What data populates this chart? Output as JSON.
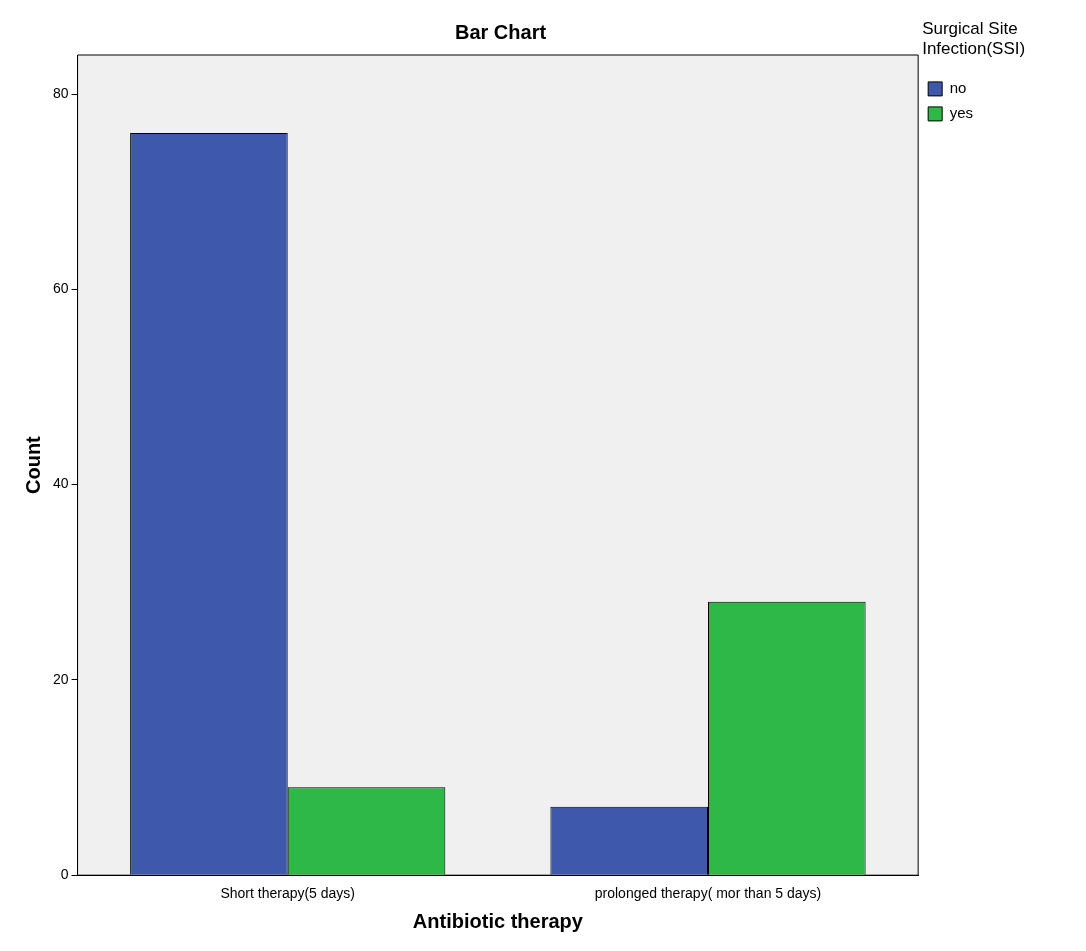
{
  "chart_data": {
    "type": "bar",
    "title": "Bar Chart",
    "xlabel": "Antibiotic therapy",
    "ylabel": "Count",
    "legend_title": "Surgical Site Infection(SSI)",
    "categories": [
      "Short therapy(5 days)",
      "prolonged therapy( mor than 5 days)"
    ],
    "series": [
      {
        "name": "no",
        "color": "#3e58ac",
        "values": [
          76,
          7
        ]
      },
      {
        "name": "yes",
        "color": "#2eb848",
        "values": [
          9,
          28
        ]
      }
    ],
    "ylim": [
      0,
      84
    ],
    "yticks": [
      0,
      20,
      40,
      60,
      80
    ],
    "grid": false,
    "legend": "top right"
  }
}
